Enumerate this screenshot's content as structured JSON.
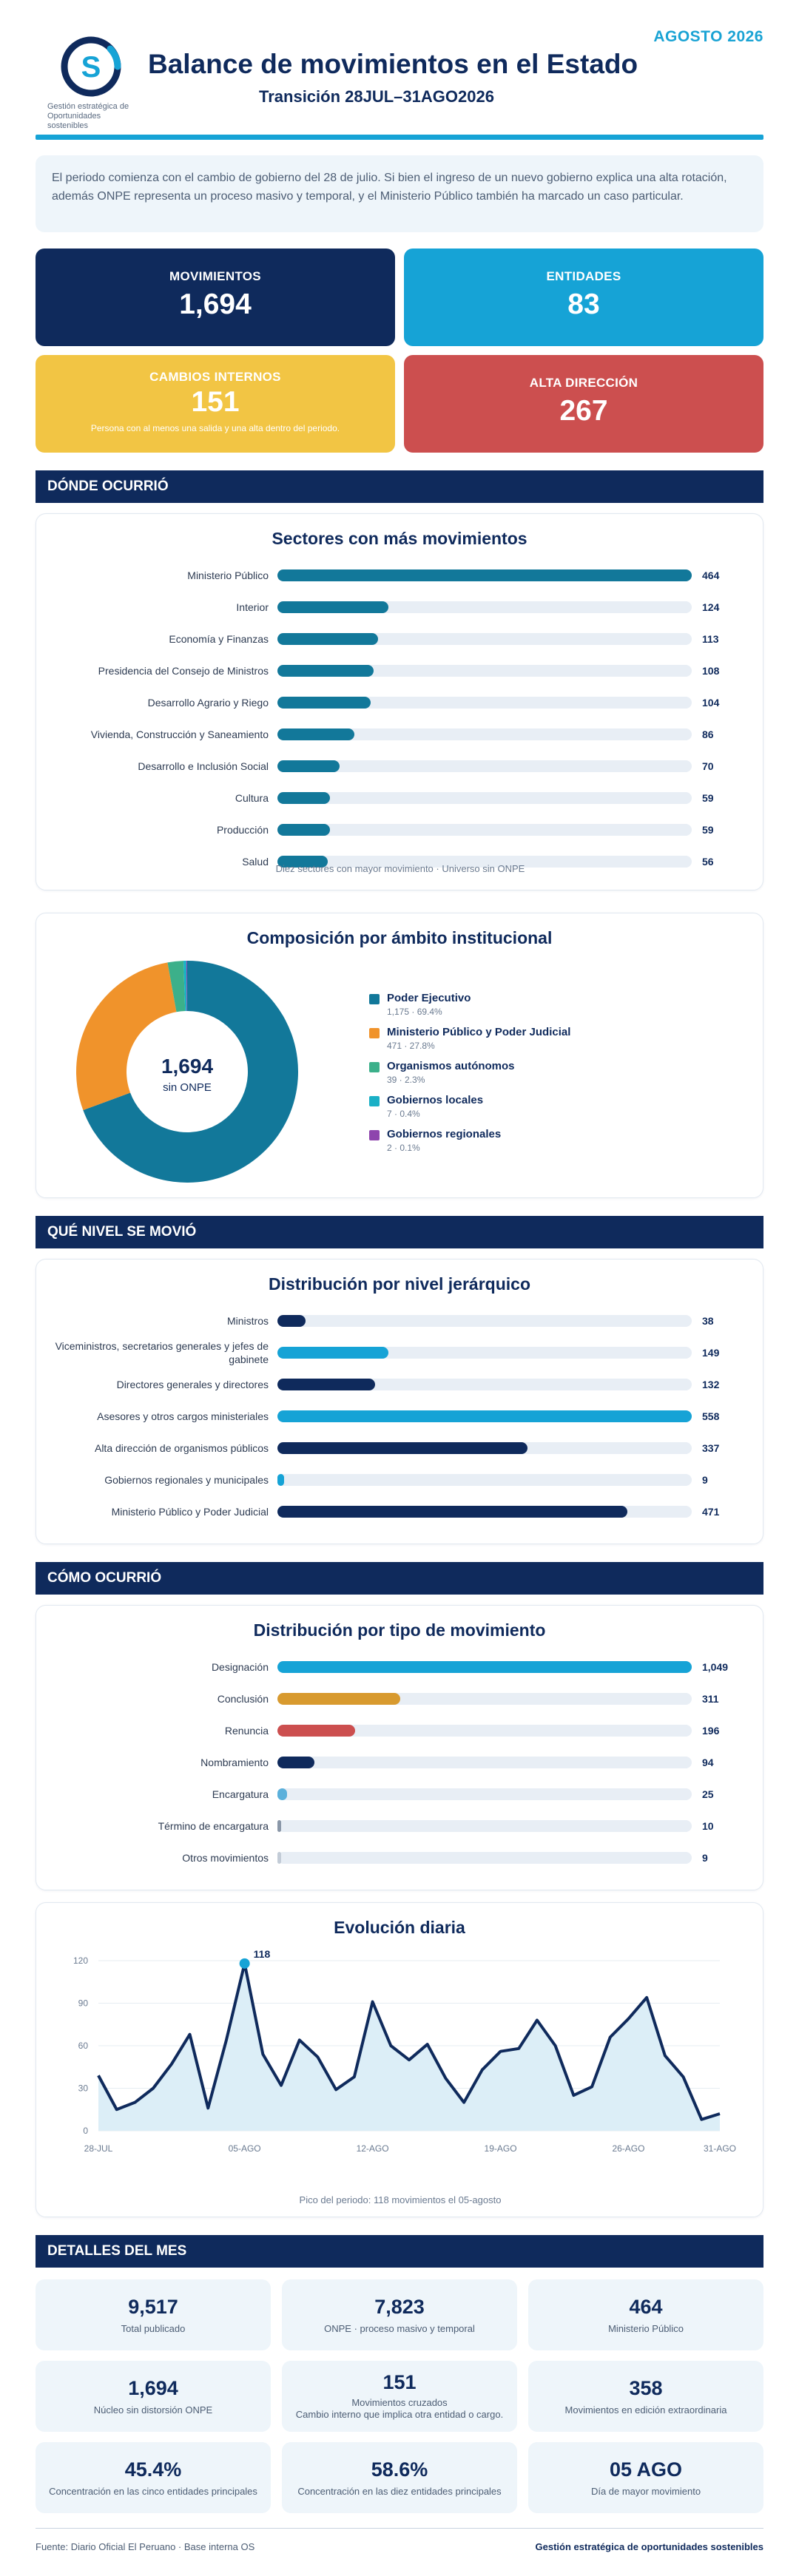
{
  "header": {
    "period": "AGOSTO 2026",
    "title": "Balance de movimientos en el Estado",
    "subtitle": "Transición 28JUL–31AGO2026",
    "logo_text_1": "Gestión estratégica de",
    "logo_text_2": "Oportunidades sostenibles"
  },
  "intro": "El periodo comienza con el cambio de gobierno del 28 de julio. Si bien el ingreso de un nuevo gobierno explica una alta rotación, además ONPE representa un proceso masivo y temporal, y el Ministerio Público también ha marcado un caso particular.",
  "kpis": {
    "movimientos": {
      "label": "MOVIMIENTOS",
      "value": "1,694"
    },
    "entidades": {
      "label": "ENTIDADES",
      "value": "83"
    },
    "cambios": {
      "label": "CAMBIOS INTERNOS",
      "value": "151",
      "note": "Persona con al menos una salida y una alta dentro del periodo."
    },
    "alta": {
      "label": "ALTA DIRECCIÓN",
      "value": "267"
    }
  },
  "sections": {
    "donde": "DÓNDE OCURRIÓ",
    "nivel": "QUÉ NIVEL SE MOVIÓ",
    "como": "CÓMO OCURRIÓ",
    "detalles": "DETALLES DEL MES"
  },
  "colors": {
    "navy": "#0f2a5c",
    "cyan": "#16a3d6",
    "teal": "#12789a",
    "orange": "#f0932b",
    "green": "#3cb08a",
    "turquoise": "#1ab0c6",
    "purple": "#8e44ad",
    "gold": "#d89a2f",
    "red": "#cc4f4f",
    "lightblue": "#5bb0db",
    "gray": "#8a97a8",
    "lightgray": "#c3ccd7"
  },
  "chart_data": [
    {
      "type": "bar",
      "orientation": "horizontal",
      "title": "Sectores con más movimientos",
      "categories": [
        "Ministerio Público",
        "Interior",
        "Economía y Finanzas",
        "Presidencia del Consejo de Ministros",
        "Desarrollo Agrario y Riego",
        "Vivienda, Construcción y Saneamiento",
        "Desarrollo e Inclusión Social",
        "Cultura",
        "Producción",
        "Salud"
      ],
      "values": [
        464,
        124,
        113,
        108,
        104,
        86,
        70,
        59,
        59,
        56
      ],
      "color": "#12789a",
      "caption": "Diez sectores con mayor movimiento · Universo sin ONPE"
    },
    {
      "type": "pie",
      "title": "Composición por ámbito institucional",
      "center_value": "1,694",
      "center_label": "sin ONPE",
      "slices": [
        {
          "name": "Poder Ejecutivo",
          "value": 1175,
          "detail": "1,175 · 69.4%",
          "color": "#12789a"
        },
        {
          "name": "Ministerio Público y Poder Judicial",
          "value": 471,
          "detail": "471 · 27.8%",
          "color": "#f0932b"
        },
        {
          "name": "Organismos autónomos",
          "value": 39,
          "detail": "39 · 2.3%",
          "color": "#3cb08a"
        },
        {
          "name": "Gobiernos locales",
          "value": 7,
          "detail": "7 · 0.4%",
          "color": "#1ab0c6"
        },
        {
          "name": "Gobiernos regionales",
          "value": 2,
          "detail": "2 · 0.1%",
          "color": "#8e44ad"
        }
      ]
    },
    {
      "type": "bar",
      "orientation": "horizontal",
      "title": "Distribución por nivel jerárquico",
      "categories": [
        "Ministros",
        "Viceministros, secretarios generales y jefes de gabinete",
        "Directores generales y directores",
        "Asesores y otros cargos ministeriales",
        "Alta dirección de organismos públicos",
        "Gobiernos regionales y municipales",
        "Ministerio Público y Poder Judicial"
      ],
      "values": [
        38,
        149,
        132,
        558,
        337,
        9,
        471
      ],
      "colors": [
        "#0f2a5c",
        "#16a3d6",
        "#0f2a5c",
        "#16a3d6",
        "#0f2a5c",
        "#16a3d6",
        "#0f2a5c"
      ]
    },
    {
      "type": "bar",
      "orientation": "horizontal",
      "title": "Distribución por tipo de movimiento",
      "categories": [
        "Designación",
        "Conclusión",
        "Renuncia",
        "Nombramiento",
        "Encargatura",
        "Término de encargatura",
        "Otros movimientos"
      ],
      "values": [
        1049,
        311,
        196,
        94,
        25,
        10,
        9
      ],
      "colors": [
        "#16a3d6",
        "#d89a2f",
        "#cc4f4f",
        "#0f2a5c",
        "#5bb0db",
        "#8a97a8",
        "#c3ccd7"
      ]
    },
    {
      "type": "area",
      "title": "Evolución diaria",
      "x": [
        "28-JUL",
        "29-JUL",
        "30-JUL",
        "31-JUL",
        "01-AGO",
        "02-AGO",
        "03-AGO",
        "04-AGO",
        "05-AGO",
        "06-AGO",
        "07-AGO",
        "08-AGO",
        "09-AGO",
        "10-AGO",
        "11-AGO",
        "12-AGO",
        "13-AGO",
        "14-AGO",
        "15-AGO",
        "16-AGO",
        "17-AGO",
        "18-AGO",
        "19-AGO",
        "20-AGO",
        "21-AGO",
        "22-AGO",
        "23-AGO",
        "24-AGO",
        "25-AGO",
        "26-AGO",
        "27-AGO",
        "28-AGO",
        "29-AGO",
        "30-AGO",
        "31-AGO"
      ],
      "values": [
        39,
        15,
        20,
        30,
        47,
        68,
        16,
        64,
        118,
        54,
        32,
        64,
        52,
        29,
        38,
        91,
        60,
        50,
        61,
        37,
        20,
        43,
        56,
        58,
        78,
        60,
        25,
        31,
        66,
        79,
        94,
        53,
        38,
        8,
        12
      ],
      "x_ticks": [
        "28-JUL",
        "05-AGO",
        "12-AGO",
        "19-AGO",
        "26-AGO",
        "31-AGO"
      ],
      "ylim": [
        0,
        120
      ],
      "y_ticks": [
        0,
        30,
        60,
        90,
        120
      ],
      "peak_label": "118",
      "caption": "Pico del periodo: 118 movimientos el 05-agosto"
    }
  ],
  "details": [
    {
      "value": "9,517",
      "label": "Total publicado"
    },
    {
      "value": "7,823",
      "label": "ONPE · proceso masivo y temporal"
    },
    {
      "value": "464",
      "label": "Ministerio Público"
    },
    {
      "value": "1,694",
      "label": "Núcleo sin distorsión ONPE"
    },
    {
      "value": "151",
      "label": "Movimientos cruzados",
      "label2": "Cambio interno que implica otra entidad o cargo."
    },
    {
      "value": "358",
      "label": "Movimientos en edición extraordinaria"
    },
    {
      "value": "45.4%",
      "label": "Concentración en las cinco entidades principales"
    },
    {
      "value": "58.6%",
      "label": "Concentración en las diez entidades principales"
    },
    {
      "value": "05 AGO",
      "label": "Día de mayor movimiento"
    }
  ],
  "footer": {
    "source": "Fuente: Diario Oficial El Peruano · Base interna OS",
    "brand": "Gestión estratégica de oportunidades sostenibles"
  }
}
